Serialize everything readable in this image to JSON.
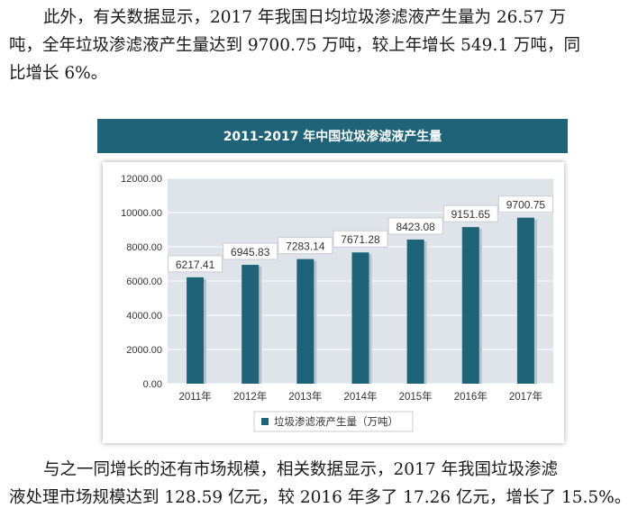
{
  "article": {
    "para1": [
      "此外，有关数据显示，2017 年我国日均垃圾渗滤液产生量为 26.57 万",
      "吨，全年垃圾渗滤液产生量达到 9700.75 万吨，较上年增长 549.1 万吨，同",
      "比增长 6%。"
    ],
    "para2": [
      "与之一同增长的还有市场规模，相关数据显示，2017 年我国垃圾渗滤",
      "液处理市场规模达到 128.59 亿元，较 2016 年多了 17.26 亿元，增长了 15.5%。"
    ]
  },
  "chart_data": {
    "type": "bar",
    "title": "2011-2017 年中国垃圾渗滤液产生量",
    "categories": [
      "2011年",
      "2012年",
      "2013年",
      "2014年",
      "2015年",
      "2016年",
      "2017年"
    ],
    "series": [
      {
        "name": "垃圾渗滤液产生量（万吨）",
        "values": [
          6217.41,
          6945.83,
          7283.14,
          7671.28,
          8423.08,
          9151.65,
          9700.75
        ],
        "labels": [
          "6217.41",
          "6945.83",
          "7283.14",
          "7671.28",
          "8423.08",
          "9151.65",
          "9700.75"
        ]
      }
    ],
    "ylim": [
      0,
      12000
    ],
    "yticks": [
      0,
      2000,
      4000,
      6000,
      8000,
      10000,
      12000
    ],
    "ytick_labels": [
      "0.00",
      "2000.00",
      "4000.00",
      "6000.00",
      "8000.00",
      "10000.00",
      "12000.00"
    ],
    "xlabel": "",
    "ylabel": "",
    "legend_position": "bottom",
    "colors": {
      "bar": "#1f6379",
      "header": "#1f6379",
      "plot_bg": "#dfe4ea",
      "grid": "#ffffff"
    }
  }
}
